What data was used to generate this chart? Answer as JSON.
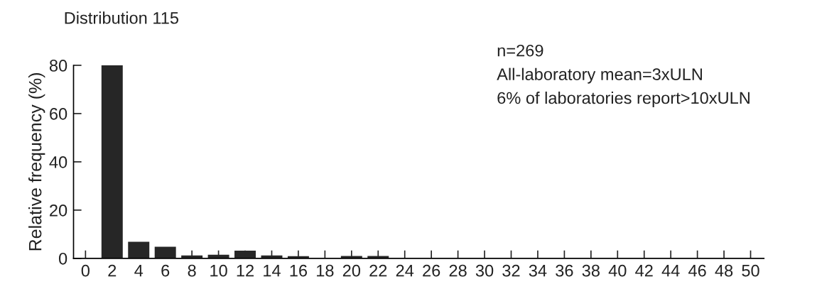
{
  "chart_data": {
    "type": "bar",
    "title": "Distribution 115",
    "ylabel": "Relative frequency (%)",
    "categories": [
      "0",
      "2",
      "4",
      "6",
      "8",
      "10",
      "12",
      "14",
      "16",
      "18",
      "20",
      "22",
      "24",
      "26",
      "28",
      "30",
      "32",
      "34",
      "36",
      "38",
      "40",
      "42",
      "44",
      "46",
      "48",
      "50"
    ],
    "values": [
      0,
      80,
      6.9,
      4.8,
      1.2,
      1.5,
      3.2,
      1.2,
      0.9,
      0,
      1.0,
      1.0,
      0,
      0,
      0,
      0,
      0,
      0,
      0,
      0,
      0,
      0,
      0,
      0,
      0,
      0
    ],
    "color": "#262626",
    "ylim": [
      0,
      80
    ],
    "yticks": [
      0,
      20,
      40,
      60,
      80
    ],
    "grid": false,
    "legend": false,
    "annotations": [
      "n=269",
      "All-laboratory mean=3xULN",
      "6% of laboratories report>10xULN"
    ]
  }
}
